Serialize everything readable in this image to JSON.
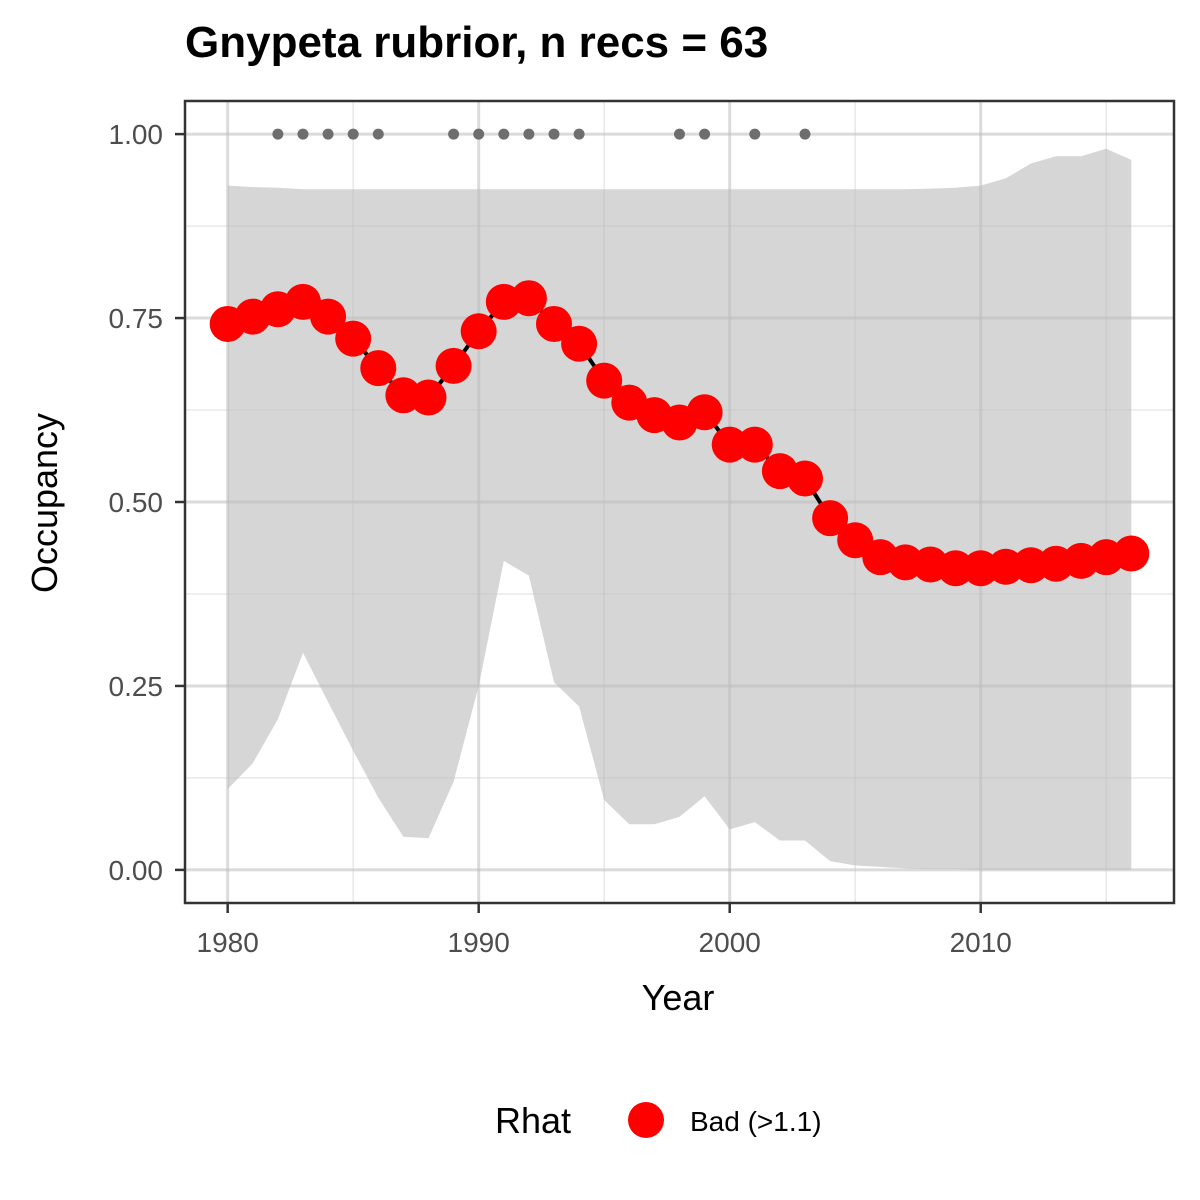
{
  "chart_data": {
    "type": "line",
    "title": "Gnypeta rubrior, n recs = 63",
    "xlabel": "Year",
    "ylabel": "Occupancy",
    "xlim": [
      1978.3,
      2017.7
    ],
    "ylim": [
      -0.045,
      1.045
    ],
    "xticks": [
      1980,
      1990,
      2000,
      2010
    ],
    "xtick_labels": [
      "1980",
      "1990",
      "2000",
      "2010"
    ],
    "yticks": [
      0,
      0.25,
      0.5,
      0.75,
      1.0
    ],
    "ytick_labels": [
      "0.00",
      "0.25",
      "0.50",
      "0.75",
      "1.00"
    ],
    "grid": true,
    "years": [
      1980,
      1981,
      1982,
      1983,
      1984,
      1985,
      1986,
      1987,
      1988,
      1989,
      1990,
      1991,
      1992,
      1993,
      1994,
      1995,
      1996,
      1997,
      1998,
      1999,
      2000,
      2001,
      2002,
      2003,
      2004,
      2005,
      2006,
      2007,
      2008,
      2009,
      2010,
      2011,
      2012,
      2013,
      2014,
      2015,
      2016
    ],
    "series": [
      {
        "values": [
          0.742,
          0.752,
          0.762,
          0.772,
          0.752,
          0.722,
          0.682,
          0.645,
          0.642,
          0.685,
          0.732,
          0.772,
          0.777,
          0.742,
          0.715,
          0.665,
          0.635,
          0.618,
          0.608,
          0.622,
          0.578,
          0.578,
          0.542,
          0.532,
          0.478,
          0.448,
          0.425,
          0.418,
          0.415,
          0.41,
          0.41,
          0.412,
          0.414,
          0.416,
          0.42,
          0.425,
          0.43
        ],
        "color": "#ff0000"
      }
    ],
    "ci_upper": [
      0.93,
      0.928,
      0.927,
      0.925,
      0.925,
      0.925,
      0.925,
      0.925,
      0.925,
      0.925,
      0.925,
      0.925,
      0.925,
      0.925,
      0.925,
      0.925,
      0.925,
      0.925,
      0.925,
      0.925,
      0.925,
      0.925,
      0.925,
      0.925,
      0.925,
      0.925,
      0.925,
      0.925,
      0.926,
      0.927,
      0.93,
      0.94,
      0.96,
      0.97,
      0.97,
      0.98,
      0.965
    ],
    "ci_lower": [
      0.11,
      0.145,
      0.205,
      0.295,
      0.228,
      0.162,
      0.098,
      0.045,
      0.043,
      0.12,
      0.25,
      0.42,
      0.4,
      0.255,
      0.222,
      0.095,
      0.062,
      0.062,
      0.072,
      0.1,
      0.055,
      0.065,
      0.04,
      0.04,
      0.012,
      0.006,
      0.004,
      0.002,
      0.001,
      0.001,
      0.0,
      0.0,
      0.0,
      0.0,
      0.0,
      0.0,
      0.0
    ],
    "ci_color": "#d6d6d6",
    "record_years": [
      1982,
      1983,
      1984,
      1985,
      1986,
      1989,
      1990,
      1991,
      1992,
      1993,
      1994,
      1998,
      1999,
      2001,
      2003
    ],
    "record_y": 1.0,
    "record_color": "#6e6e6e",
    "legend": {
      "title": "Rhat",
      "entries": [
        {
          "label": "Bad (>1.1)",
          "color": "#ff0000"
        }
      ],
      "placement": "bottom"
    }
  }
}
